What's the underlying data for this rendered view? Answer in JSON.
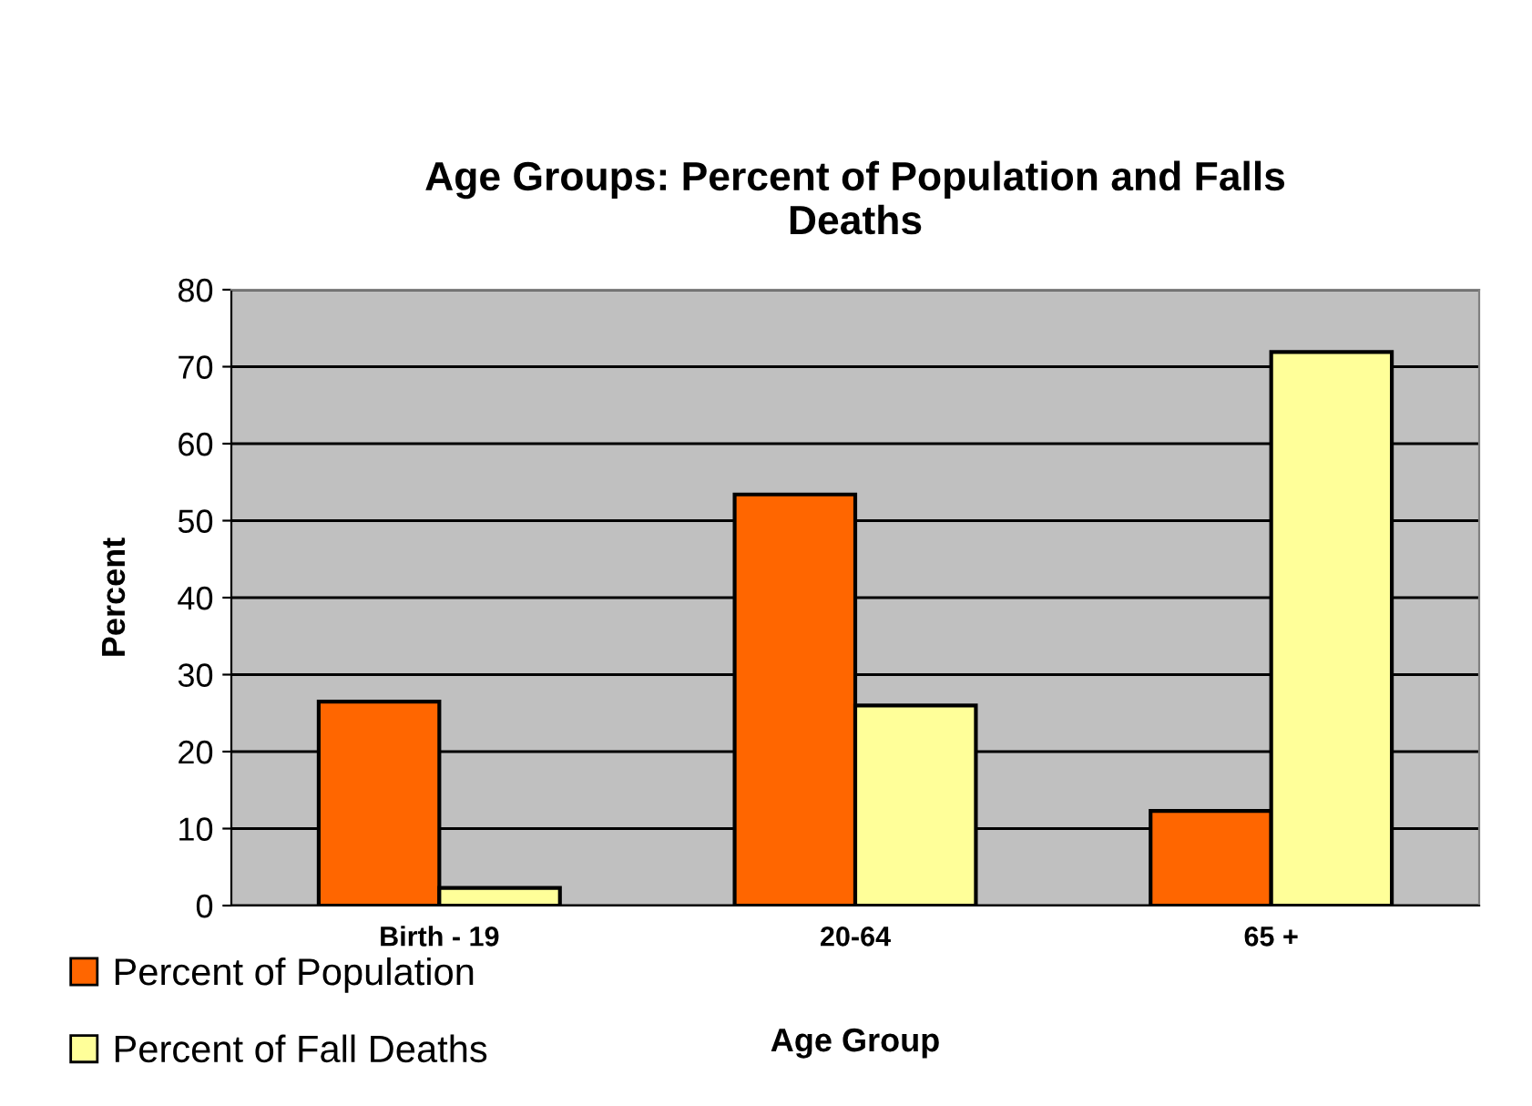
{
  "chart_data": {
    "type": "bar",
    "title": "Age Groups: Percent of Population and Falls\nDeaths",
    "xlabel": "Age Group",
    "ylabel": "Percent",
    "categories": [
      "Birth - 19",
      "20-64",
      "65 +"
    ],
    "series": [
      {
        "name": "Percent of Population",
        "color": "#ff6600",
        "values": [
          26.5,
          53.4,
          12.3
        ]
      },
      {
        "name": "Percent of Fall Deaths",
        "color": "#ffff99",
        "values": [
          2.3,
          26.0,
          71.9
        ]
      }
    ],
    "ylim": [
      0,
      80
    ],
    "yticks": [
      0,
      10,
      20,
      30,
      40,
      50,
      60,
      70,
      80
    ],
    "grid": "y",
    "legend": "bottom left"
  }
}
